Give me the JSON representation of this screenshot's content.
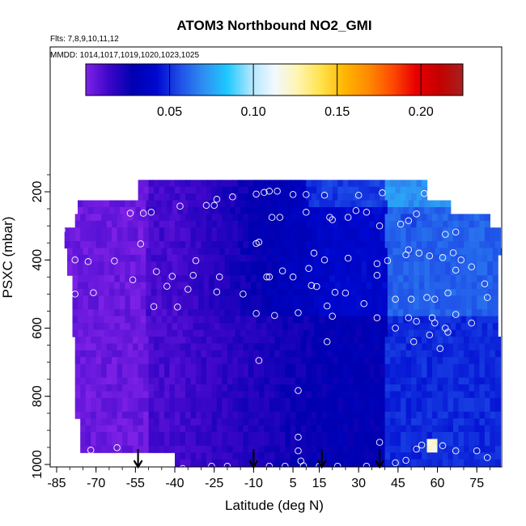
{
  "chart_data": {
    "type": "heatmap",
    "title": "ATOM3 Northbound NO2_GMI",
    "subtitle_flights": "Flts: 7,8,9,10,11,12",
    "subtitle_dates": "MMDD: 1014,1017,1019,1020,1023,1025",
    "xlabel": "Latitude (deg N)",
    "ylabel": "PSXC (mbar)",
    "xlim": [
      -85,
      85
    ],
    "ylim": [
      1000,
      100
    ],
    "xticks": [
      -85,
      -70,
      -55,
      -40,
      -25,
      -10,
      5,
      15,
      30,
      45,
      60,
      75
    ],
    "yticks": [
      200,
      400,
      600,
      800,
      1000
    ],
    "colorbar": {
      "range": [
        0.0,
        0.225
      ],
      "ticks": [
        0.05,
        0.1,
        0.15,
        0.2
      ],
      "tick_labels": [
        "0.05",
        "0.10",
        "0.15",
        "0.20"
      ],
      "colors": [
        "#7f22e6",
        "#3a06c8",
        "#0000b0",
        "#0008d0",
        "#1f4fe8",
        "#2f8ff2",
        "#1ec8ff",
        "#aee6ff",
        "#f2f8ff",
        "#fff4b0",
        "#ffe24a",
        "#ffb400",
        "#ff8a00",
        "#ff4a00",
        "#e80000",
        "#c40000",
        "#a82020"
      ]
    },
    "grid": false,
    "arrows_latitude": [
      -54,
      -10,
      16,
      38
    ],
    "sample_points": [
      [
        -59,
        185
      ],
      [
        -78,
        213
      ],
      [
        -72,
        211
      ],
      [
        -69,
        212
      ],
      [
        -38,
        242
      ],
      [
        -28,
        240
      ],
      [
        -25,
        240
      ],
      [
        -24,
        222
      ],
      [
        -18,
        215
      ],
      [
        -9,
        207
      ],
      [
        -6,
        202
      ],
      [
        -4,
        198
      ],
      [
        -1,
        198
      ],
      [
        5,
        208
      ],
      [
        10,
        208
      ],
      [
        17,
        210
      ],
      [
        30,
        210
      ],
      [
        39,
        203
      ],
      [
        55,
        205
      ],
      [
        -57,
        263
      ],
      [
        -52,
        263
      ],
      [
        -49,
        260
      ],
      [
        -3,
        275
      ],
      [
        0,
        275
      ],
      [
        10,
        260
      ],
      [
        20,
        282
      ],
      [
        19,
        275
      ],
      [
        26,
        275
      ],
      [
        29,
        255
      ],
      [
        33,
        260
      ],
      [
        38,
        300
      ],
      [
        46,
        295
      ],
      [
        52,
        265
      ],
      [
        49,
        285
      ],
      [
        63,
        325
      ],
      [
        67,
        318
      ],
      [
        -53,
        353
      ],
      [
        -9,
        352
      ],
      [
        -8,
        348
      ],
      [
        -32,
        402
      ],
      [
        -84,
        330
      ],
      [
        -83,
        312
      ],
      [
        -78,
        400
      ],
      [
        -73,
        405
      ],
      [
        -63,
        403
      ],
      [
        -47,
        434
      ],
      [
        -41,
        448
      ],
      [
        -33,
        445
      ],
      [
        -23,
        450
      ],
      [
        -5,
        450
      ],
      [
        1,
        432
      ],
      [
        11,
        425
      ],
      [
        13,
        380
      ],
      [
        17,
        400
      ],
      [
        26,
        395
      ],
      [
        37,
        411
      ],
      [
        37,
        445
      ],
      [
        41,
        402
      ],
      [
        49,
        370
      ],
      [
        48,
        385
      ],
      [
        53,
        380
      ],
      [
        57,
        388
      ],
      [
        62,
        393
      ],
      [
        66,
        379
      ],
      [
        67,
        430
      ],
      [
        69,
        400
      ],
      [
        73,
        420
      ],
      [
        78,
        470
      ],
      [
        79,
        510
      ],
      [
        -78,
        500
      ],
      [
        -71,
        496
      ],
      [
        -56,
        458
      ],
      [
        -43,
        477
      ],
      [
        -35,
        486
      ],
      [
        -24,
        494
      ],
      [
        -14,
        500
      ],
      [
        -4,
        450
      ],
      [
        5,
        450
      ],
      [
        12,
        475
      ],
      [
        14,
        478
      ],
      [
        21,
        495
      ],
      [
        25,
        497
      ],
      [
        32,
        528
      ],
      [
        44,
        515
      ],
      [
        50,
        515
      ],
      [
        56,
        510
      ],
      [
        59,
        515
      ],
      [
        64,
        497
      ],
      [
        -48,
        537
      ],
      [
        -39,
        538
      ],
      [
        -9,
        557
      ],
      [
        -2,
        563
      ],
      [
        7,
        555
      ],
      [
        18,
        535
      ],
      [
        20,
        565
      ],
      [
        37,
        570
      ],
      [
        44,
        600
      ],
      [
        49,
        570
      ],
      [
        52,
        580
      ],
      [
        58,
        570
      ],
      [
        59,
        585
      ],
      [
        63,
        600
      ],
      [
        64,
        612
      ],
      [
        67,
        560
      ],
      [
        73,
        585
      ],
      [
        57,
        620
      ],
      [
        51,
        640
      ],
      [
        61,
        660
      ],
      [
        18,
        640
      ],
      [
        -8,
        695
      ],
      [
        7,
        783
      ],
      [
        38,
        935
      ],
      [
        52,
        955
      ],
      [
        54,
        943
      ],
      [
        62,
        945
      ],
      [
        67,
        960
      ],
      [
        75,
        960
      ],
      [
        79,
        980
      ],
      [
        -80,
        955
      ],
      [
        -72,
        958
      ],
      [
        -62,
        951
      ],
      [
        7,
        960
      ],
      [
        8,
        990
      ],
      [
        9,
        1004
      ],
      [
        15,
        1005
      ],
      [
        22,
        1005
      ],
      [
        33,
        1005
      ],
      [
        44,
        995
      ],
      [
        48,
        988
      ],
      [
        -4,
        1005
      ],
      [
        2,
        1005
      ],
      [
        -20,
        1005
      ],
      [
        -26,
        1005
      ],
      [
        -37,
        1012
      ],
      [
        -43,
        1005
      ],
      [
        7,
        920
      ]
    ]
  }
}
